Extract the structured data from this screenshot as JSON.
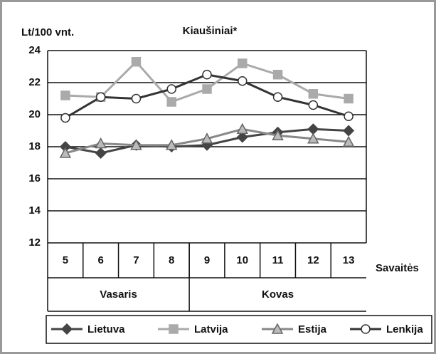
{
  "chart_data": {
    "type": "line",
    "title": "Kiaušiniai*",
    "y_label": "Lt/100 vnt.",
    "x_label": "Savaitės",
    "categories": [
      "5",
      "6",
      "7",
      "8",
      "9",
      "10",
      "11",
      "12",
      "13"
    ],
    "groups": [
      {
        "label": "Vasaris",
        "count": 4
      },
      {
        "label": "Kovas",
        "count": 5
      }
    ],
    "series": [
      {
        "name": "Lietuva",
        "color": "#444444",
        "marker": "diamond",
        "values": [
          18.0,
          17.6,
          18.1,
          18.0,
          18.1,
          18.6,
          18.9,
          19.1,
          19.0
        ]
      },
      {
        "name": "Latvija",
        "color": "#aaaaaa",
        "marker": "square",
        "values": [
          21.2,
          21.1,
          23.3,
          20.8,
          21.6,
          23.2,
          22.5,
          21.3,
          21.0
        ]
      },
      {
        "name": "Estija",
        "color": "#888888",
        "marker": "triangle",
        "values": [
          17.6,
          18.2,
          18.1,
          18.1,
          18.5,
          19.1,
          18.7,
          18.5,
          18.3
        ]
      },
      {
        "name": "Lenkija",
        "color": "#333333",
        "marker": "circle",
        "values": [
          19.8,
          21.1,
          21.0,
          21.6,
          22.5,
          22.1,
          21.1,
          20.6,
          19.9
        ]
      }
    ],
    "ylim": [
      12,
      24
    ],
    "yticks": [
      12,
      14,
      16,
      18,
      20,
      22,
      24
    ],
    "grid": true,
    "legend": "bottom"
  }
}
